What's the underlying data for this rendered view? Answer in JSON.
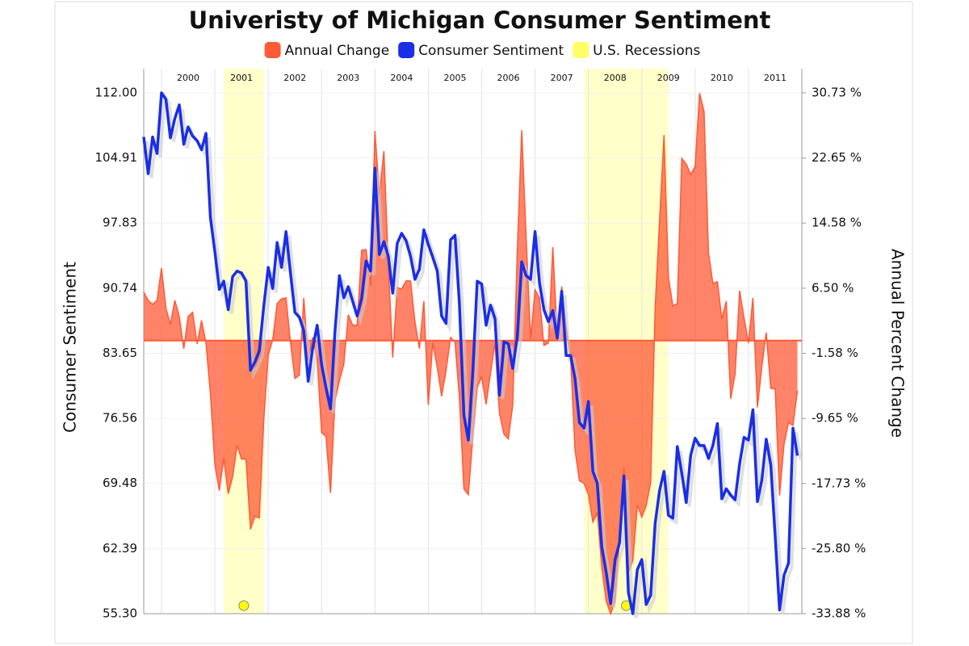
{
  "chart_data": {
    "type": "line",
    "title": "Univeristy of Michigan Consumer Sentiment",
    "y_label": "Consumer Sentiment",
    "y2_label": "Annual Percent Change",
    "x": [
      1999.667,
      1999.75,
      1999.833,
      1999.917,
      2000,
      2000.083,
      2000.167,
      2000.25,
      2000.333,
      2000.417,
      2000.5,
      2000.583,
      2000.667,
      2000.75,
      2000.833,
      2000.917,
      2001,
      2001.083,
      2001.167,
      2001.25,
      2001.333,
      2001.417,
      2001.5,
      2001.583,
      2001.667,
      2001.75,
      2001.833,
      2001.917,
      2002,
      2002.083,
      2002.167,
      2002.25,
      2002.333,
      2002.417,
      2002.5,
      2002.583,
      2002.667,
      2002.75,
      2002.833,
      2002.917,
      2003,
      2003.083,
      2003.167,
      2003.25,
      2003.333,
      2003.417,
      2003.5,
      2003.583,
      2003.667,
      2003.75,
      2003.833,
      2003.917,
      2004,
      2004.083,
      2004.167,
      2004.25,
      2004.333,
      2004.417,
      2004.5,
      2004.583,
      2004.667,
      2004.75,
      2004.833,
      2004.917,
      2005,
      2005.083,
      2005.167,
      2005.25,
      2005.333,
      2005.417,
      2005.5,
      2005.583,
      2005.667,
      2005.75,
      2005.833,
      2005.917,
      2006,
      2006.083,
      2006.167,
      2006.25,
      2006.333,
      2006.417,
      2006.5,
      2006.583,
      2006.667,
      2006.75,
      2006.833,
      2006.917,
      2007,
      2007.083,
      2007.167,
      2007.25,
      2007.333,
      2007.417,
      2007.5,
      2007.583,
      2007.667,
      2007.75,
      2007.833,
      2007.917,
      2008,
      2008.083,
      2008.167,
      2008.25,
      2008.333,
      2008.417,
      2008.5,
      2008.583,
      2008.667,
      2008.75,
      2008.833,
      2008.917,
      2009,
      2009.083,
      2009.167,
      2009.25,
      2009.333,
      2009.417,
      2009.5,
      2009.583,
      2009.667,
      2009.75,
      2009.833,
      2009.917,
      2010,
      2010.083,
      2010.167,
      2010.25,
      2010.333,
      2010.417,
      2010.5,
      2010.583,
      2010.667,
      2010.75,
      2010.833,
      2010.917,
      2011,
      2011.083,
      2011.167,
      2011.25,
      2011.333,
      2011.417,
      2011.5,
      2011.583,
      2011.667,
      2011.75,
      2011.833,
      2011.917
    ],
    "series": [
      {
        "name": "Annual Change",
        "color": "#ff5a36",
        "axis": "y2",
        "values": [
          6,
          5,
          4.5,
          5,
          9,
          4,
          2,
          5,
          3,
          -1,
          3,
          3.5,
          -0.4,
          2.5,
          -0.3,
          -6.6,
          -15.4,
          -18.6,
          -14.6,
          -19.0,
          -16.9,
          -13.0,
          -14.7,
          -14.7,
          -23.4,
          -21.8,
          -22.0,
          -9.8,
          -1.8,
          0.1,
          4.6,
          5.2,
          5.3,
          -0.2,
          -4.7,
          -4.3,
          5.3,
          -2.5,
          0.4,
          -2.4,
          -11.4,
          -11.9,
          -18.9,
          -7.5,
          -5.0,
          -2.9,
          3.2,
          1.9,
          1.9,
          11.2,
          11.3,
          6.8,
          26.0,
          18.1,
          23.5,
          9.5,
          -2.1,
          6.6,
          6.4,
          7.4,
          7.4,
          2.3,
          -1.0,
          4.9,
          -8.0,
          -0.3,
          -3.3,
          -6.9,
          -3.7,
          0.4,
          -0.2,
          -7.1,
          -18.4,
          -19.1,
          -12.1,
          -5.8,
          -4.5,
          -7.9,
          -4.0,
          -0.3,
          -9.0,
          -11.6,
          -12.2,
          -8.0,
          11.1,
          26.1,
          12.9,
          0.2,
          6.3,
          5.3,
          -0.6,
          -0.3,
          11.6,
          0.5,
          6.7,
          1.7,
          -2.3,
          -13.6,
          -17.4,
          -17.7,
          -19.1,
          -22.5,
          -21.4,
          -28.1,
          -32.3,
          -33.9,
          -32.3,
          -24.5,
          -15.7,
          -28.8,
          -27.3,
          -20.4,
          -21.9,
          -20.5,
          -17.6,
          4.0,
          14.9,
          25.5,
          7.8,
          4.3,
          4.6,
          22.6,
          21.9,
          20.6,
          21.6,
          30.7,
          28.4,
          10.9,
          7.1,
          7.3,
          2.7,
          4.9,
          -7.2,
          -4.1,
          6.2,
          2.8,
          -0.3,
          5.3,
          -8.3,
          -3.3,
          1.0,
          -5.9,
          -6.0,
          -19.2,
          -12.8,
          -10.2,
          -10.5,
          -6.2
        ]
      },
      {
        "name": "Consumer Sentiment",
        "color": "#1a2ee8",
        "values": [
          107.2,
          103.2,
          107.2,
          105.4,
          112.0,
          111.3,
          107.1,
          109.2,
          110.7,
          106.4,
          108.3,
          107.3,
          106.8,
          105.8,
          107.6,
          98.4,
          94.7,
          90.6,
          91.5,
          88.4,
          92.0,
          92.6,
          92.4,
          91.5,
          81.8,
          82.7,
          83.9,
          88.8,
          93.0,
          90.7,
          95.7,
          93.0,
          96.9,
          92.4,
          88.1,
          87.6,
          86.1,
          80.6,
          84.2,
          86.7,
          82.4,
          79.9,
          77.6,
          86.0,
          92.1,
          89.7,
          90.9,
          89.3,
          87.7,
          89.6,
          93.7,
          92.6,
          103.8,
          94.4,
          95.8,
          94.2,
          90.2,
          95.6,
          96.7,
          95.9,
          94.2,
          91.7,
          92.8,
          97.1,
          95.5,
          94.1,
          92.6,
          87.7,
          86.9,
          96.0,
          96.5,
          89.1,
          76.9,
          74.2,
          81.6,
          91.5,
          91.2,
          86.7,
          88.9,
          87.4,
          79.1,
          84.9,
          84.7,
          82.0,
          85.4,
          93.6,
          92.1,
          91.7,
          96.9,
          91.3,
          88.4,
          87.1,
          88.3,
          85.3,
          90.4,
          83.4,
          83.4,
          80.9,
          76.1,
          75.5,
          78.4,
          70.8,
          69.5,
          62.6,
          59.8,
          56.4,
          61.2,
          63.0,
          70.3,
          57.6,
          55.3,
          60.1,
          61.2,
          56.3,
          57.3,
          65.1,
          68.7,
          70.8,
          66.0,
          65.7,
          73.5,
          70.6,
          67.4,
          72.5,
          74.4,
          73.6,
          73.6,
          72.2,
          73.6,
          76.0,
          67.8,
          68.9,
          68.2,
          67.7,
          71.6,
          74.5,
          74.2,
          77.5,
          67.5,
          69.8,
          74.3,
          71.5,
          63.7,
          55.7,
          59.5,
          60.8,
          75.5,
          72.5
        ]
      },
      {
        "name": "U.S. Recessions",
        "color": "#ffff66",
        "periods": [
          [
            2001.167,
            2001.917
          ],
          [
            2007.917,
            2009.5
          ]
        ]
      }
    ],
    "xlim": [
      1999.667,
      2012.0
    ],
    "xticks": [
      {
        "value": 2000,
        "label": "2000"
      },
      {
        "value": 2001,
        "label": "2001"
      },
      {
        "value": 2002,
        "label": "2002"
      },
      {
        "value": 2003,
        "label": "2003"
      },
      {
        "value": 2004,
        "label": "2004"
      },
      {
        "value": 2005,
        "label": "2005"
      },
      {
        "value": 2006,
        "label": "2006"
      },
      {
        "value": 2007,
        "label": "2007"
      },
      {
        "value": 2008,
        "label": "2008"
      },
      {
        "value": 2009,
        "label": "2009"
      },
      {
        "value": 2010,
        "label": "2010"
      },
      {
        "value": 2011,
        "label": "2011"
      }
    ],
    "ylim": [
      55.3,
      112
    ],
    "yticks": [
      {
        "value": 112,
        "label": "112.00"
      },
      104.91,
      97.83,
      90.74,
      83.65,
      76.56,
      69.48,
      62.39,
      {
        "value": 55.3,
        "label": "55.30"
      }
    ],
    "y2lim": [
      -33.88,
      30.73
    ],
    "y2ticks": [
      {
        "value": 30.73,
        "label": "30.73 %"
      },
      {
        "value": 22.65,
        "label": "22.65 %"
      },
      {
        "value": 14.58,
        "label": "14.58 %"
      },
      {
        "value": 6.5,
        "label": "6.50 %"
      },
      {
        "value": -1.58,
        "label": "-1.58 %"
      },
      {
        "value": -9.65,
        "label": "-9.65 %"
      },
      {
        "value": -17.73,
        "label": "-17.73 %"
      },
      {
        "value": -25.8,
        "label": "-25.80 %"
      },
      {
        "value": -33.88,
        "label": "-33.88 %"
      }
    ],
    "grid": true
  }
}
